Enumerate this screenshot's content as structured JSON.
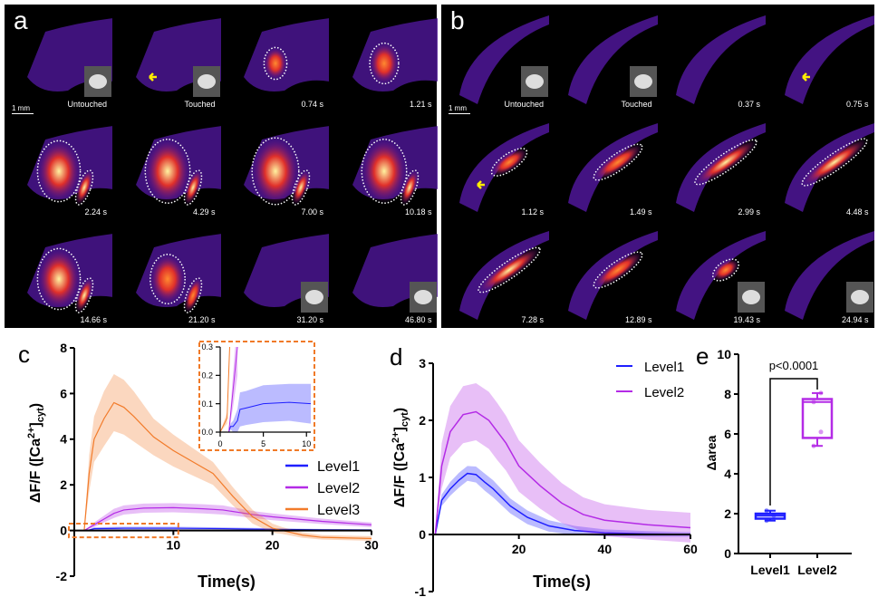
{
  "panel_a": {
    "letter": "a",
    "scale_bar": "1 mm",
    "frames": [
      "Untouched",
      "Touched",
      "0.74 s",
      "1.21 s",
      "2.24 s",
      "4.29 s",
      "7.00 s",
      "10.18 s",
      "14.66 s",
      "21.20 s",
      "31.20 s",
      "46.80 s"
    ]
  },
  "panel_b": {
    "letter": "b",
    "scale_bar": "1 mm",
    "frames": [
      "Untouched",
      "Touched",
      "0.37 s",
      "0.75 s",
      "1.12 s",
      "1.49 s",
      "2.99 s",
      "4.48 s",
      "7.28 s",
      "12.89 s",
      "19.43 s",
      "24.94 s"
    ]
  },
  "colors": {
    "Level1": "#1f1fff",
    "Level2": "#b42be6",
    "Level3": "#f27b2a",
    "highlight": "#f07a28",
    "arrow": "#ffee00"
  },
  "chart_data": [
    {
      "id": "c",
      "letter": "c",
      "type": "line",
      "xlabel": "Time(s)",
      "ylabel": "ΔF/F ([Ca2+]cyt)",
      "xlim": [
        0,
        30
      ],
      "ylim": [
        -2,
        8
      ],
      "xticks": [
        10,
        20,
        30
      ],
      "yticks": [
        -2,
        0,
        2,
        4,
        6,
        8
      ],
      "legend": "right",
      "series": [
        {
          "name": "Level1",
          "x": [
            0,
            1,
            1.5,
            2,
            5,
            10,
            15,
            20,
            25,
            30
          ],
          "y": [
            0,
            0,
            0.02,
            0.08,
            0.1,
            0.1,
            0.08,
            0.05,
            0.03,
            0.02
          ],
          "err": [
            0,
            0,
            0.03,
            0.06,
            0.07,
            0.07,
            0.06,
            0.05,
            0.04,
            0.04
          ]
        },
        {
          "name": "Level2",
          "x": [
            0,
            1,
            2,
            3,
            4,
            5,
            7,
            10,
            13,
            15,
            18,
            20,
            25,
            30
          ],
          "y": [
            0,
            0,
            0.25,
            0.5,
            0.75,
            0.9,
            0.98,
            1.0,
            0.95,
            0.9,
            0.7,
            0.6,
            0.4,
            0.25
          ],
          "err": [
            0,
            0,
            0.1,
            0.15,
            0.2,
            0.2,
            0.2,
            0.2,
            0.2,
            0.2,
            0.15,
            0.15,
            0.12,
            0.1
          ]
        },
        {
          "name": "Level3",
          "x": [
            0,
            1,
            1.5,
            2,
            3,
            4,
            5,
            6,
            8,
            10,
            12,
            14,
            16,
            18,
            20,
            21,
            23,
            25,
            30
          ],
          "y": [
            0,
            0,
            2.5,
            4.0,
            4.9,
            5.6,
            5.4,
            5.0,
            4.1,
            3.5,
            3.0,
            2.5,
            1.5,
            0.6,
            0.1,
            0,
            -0.2,
            -0.3,
            -0.35
          ],
          "err": [
            0,
            0,
            0.8,
            1.0,
            1.2,
            1.25,
            1.2,
            1.1,
            0.8,
            0.7,
            0.6,
            0.5,
            0.4,
            0.3,
            0.2,
            0.15,
            0.12,
            0.1,
            0.1
          ]
        }
      ],
      "highlight_region": {
        "x": [
          0,
          10.5
        ],
        "y": [
          -0.3,
          0.3
        ]
      }
    },
    {
      "id": "c_inset",
      "type": "line",
      "xlim": [
        0,
        10.5
      ],
      "ylim": [
        0,
        0.3
      ],
      "xticks": [
        0,
        5,
        10
      ],
      "yticks": [
        0.0,
        0.1,
        0.2,
        0.3
      ],
      "ytick_labels": [
        "0.0",
        "0.1",
        "0.2",
        "0.3"
      ],
      "series": [
        {
          "name": "Level1",
          "x": [
            0,
            1,
            1.2,
            1.5,
            2,
            2.3,
            3,
            5,
            8,
            10.5
          ],
          "y": [
            0,
            0,
            0.02,
            0.02,
            0.04,
            0.08,
            0.085,
            0.1,
            0.105,
            0.1
          ],
          "err": [
            0,
            0,
            0.01,
            0.02,
            0.04,
            0.06,
            0.06,
            0.065,
            0.065,
            0.07
          ]
        },
        {
          "name": "Level2",
          "x": [
            0,
            1,
            1.5,
            2
          ],
          "y": [
            0,
            0,
            0.15,
            0.3
          ],
          "err": [
            0,
            0,
            0.06,
            0.1
          ]
        },
        {
          "name": "Level3",
          "x": [
            0,
            0.8,
            1.1
          ],
          "y": [
            0,
            0.05,
            0.3
          ],
          "err": [
            0,
            0.02,
            0.02
          ]
        }
      ]
    },
    {
      "id": "d",
      "letter": "d",
      "type": "line",
      "xlabel": "Time(s)",
      "ylabel": "ΔF/F ([Ca2+]cyt)",
      "xlim": [
        0,
        60
      ],
      "ylim": [
        -1,
        3
      ],
      "xticks": [
        20,
        40,
        60
      ],
      "yticks": [
        -1,
        0,
        1,
        2,
        3
      ],
      "legend": "top-right",
      "series": [
        {
          "name": "Level1",
          "x": [
            0,
            0.5,
            2,
            4,
            6,
            8,
            10,
            12,
            14,
            16,
            18,
            22,
            27,
            33,
            40,
            50,
            60
          ],
          "y": [
            0,
            0,
            0.6,
            0.8,
            0.95,
            1.07,
            1.05,
            0.92,
            0.8,
            0.65,
            0.5,
            0.3,
            0.15,
            0.07,
            0.03,
            0.01,
            0
          ],
          "err": [
            0,
            0,
            0.1,
            0.12,
            0.13,
            0.13,
            0.14,
            0.15,
            0.15,
            0.14,
            0.13,
            0.12,
            0.1,
            0.08,
            0.06,
            0.05,
            0.04
          ]
        },
        {
          "name": "Level2",
          "x": [
            0,
            0.5,
            2,
            4,
            7,
            10,
            13,
            15,
            17,
            20,
            25,
            30,
            35,
            40,
            50,
            60
          ],
          "y": [
            0,
            0,
            1.2,
            1.8,
            2.1,
            2.15,
            2.0,
            1.8,
            1.6,
            1.2,
            0.85,
            0.55,
            0.35,
            0.25,
            0.17,
            0.12
          ],
          "err": [
            0,
            0,
            0.4,
            0.45,
            0.5,
            0.5,
            0.5,
            0.5,
            0.48,
            0.45,
            0.4,
            0.35,
            0.3,
            0.28,
            0.26,
            0.26
          ]
        }
      ]
    },
    {
      "id": "e",
      "letter": "e",
      "type": "box",
      "ylabel": "Δarea",
      "ylim": [
        0,
        10
      ],
      "yticks": [
        0,
        2,
        4,
        6,
        8,
        10
      ],
      "categories": [
        "Level1",
        "Level2"
      ],
      "boxes": [
        {
          "name": "Level1",
          "min": 1.65,
          "q1": 1.75,
          "median": 1.9,
          "q3": 2.0,
          "max": 2.15,
          "points": [
            1.65,
            1.9,
            2.15
          ]
        },
        {
          "name": "Level2",
          "min": 5.4,
          "q1": 5.8,
          "median": 7.6,
          "q3": 7.75,
          "max": 8.05,
          "points": [
            5.4,
            6.1,
            7.6,
            8.05
          ]
        }
      ],
      "annotation": "p<0.0001"
    }
  ]
}
